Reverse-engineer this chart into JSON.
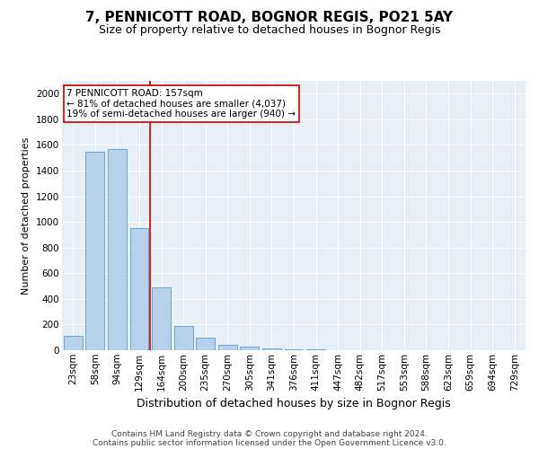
{
  "title": "7, PENNICOTT ROAD, BOGNOR REGIS, PO21 5AY",
  "subtitle": "Size of property relative to detached houses in Bognor Regis",
  "xlabel": "Distribution of detached houses by size in Bognor Regis",
  "ylabel": "Number of detached properties",
  "categories": [
    "23sqm",
    "58sqm",
    "94sqm",
    "129sqm",
    "164sqm",
    "200sqm",
    "235sqm",
    "270sqm",
    "305sqm",
    "341sqm",
    "376sqm",
    "411sqm",
    "447sqm",
    "482sqm",
    "517sqm",
    "553sqm",
    "588sqm",
    "623sqm",
    "659sqm",
    "694sqm",
    "729sqm"
  ],
  "values": [
    110,
    1545,
    1565,
    950,
    490,
    190,
    100,
    45,
    25,
    15,
    10,
    5,
    0,
    0,
    0,
    0,
    0,
    0,
    0,
    0,
    0
  ],
  "bar_color": "#b8d0ea",
  "bar_edge_color": "#6aaad4",
  "vline_color": "#cc0000",
  "vline_x_idx": 3.5,
  "annotation_text": "7 PENNICOTT ROAD: 157sqm\n← 81% of detached houses are smaller (4,037)\n19% of semi-detached houses are larger (940) →",
  "annotation_box_facecolor": "white",
  "annotation_box_edgecolor": "#cc0000",
  "ylim": [
    0,
    2100
  ],
  "yticks": [
    0,
    200,
    400,
    600,
    800,
    1000,
    1200,
    1400,
    1600,
    1800,
    2000
  ],
  "bg_color": "#e8eef5",
  "footer_line1": "Contains HM Land Registry data © Crown copyright and database right 2024.",
  "footer_line2": "Contains public sector information licensed under the Open Government Licence v3.0.",
  "title_fontsize": 11,
  "subtitle_fontsize": 9,
  "xlabel_fontsize": 9,
  "ylabel_fontsize": 8,
  "tick_fontsize": 7.5,
  "annotation_fontsize": 7.5,
  "footer_fontsize": 6.5
}
